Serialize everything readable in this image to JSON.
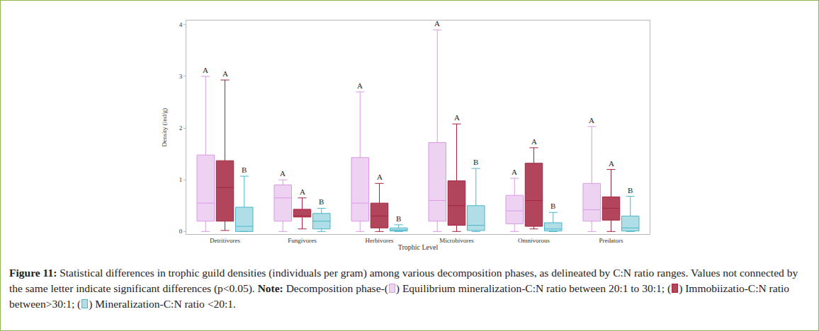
{
  "chart_data": {
    "type": "box",
    "x_label": "Trophic Level",
    "y_label": "Density (ind/g)",
    "categories": [
      "Detritivores",
      "Fungivores",
      "Herbivores",
      "Microbivores",
      "Omnivorous",
      "Predators"
    ],
    "ylim": [
      -0.05,
      4.08
    ],
    "yticks": [
      0,
      1,
      2,
      3,
      4
    ],
    "grid": false,
    "series": [
      {
        "name": "Equilibrium mineralization-C:N ratio between 20:1 to 30:1",
        "color": "#d99be3",
        "lowerfence": [
          0.0,
          0.0,
          0.0,
          0.0,
          0.0,
          0.0
        ],
        "q1": [
          0.2,
          0.2,
          0.2,
          0.2,
          0.15,
          0.2
        ],
        "median": [
          0.55,
          0.65,
          0.55,
          0.6,
          0.4,
          0.42
        ],
        "q3": [
          1.48,
          0.9,
          1.43,
          1.72,
          0.7,
          0.93
        ],
        "upperfence": [
          3.0,
          1.0,
          2.7,
          3.9,
          1.03,
          2.03
        ],
        "letters": [
          "A",
          "A",
          "A",
          "A",
          "A",
          "A"
        ]
      },
      {
        "name": "Immobiizatio-C:N ratio between>30:1",
        "color": "#a3253f",
        "lowerfence": [
          0.02,
          0.05,
          0.0,
          0.0,
          0.05,
          0.0
        ],
        "q1": [
          0.2,
          0.28,
          0.07,
          0.12,
          0.1,
          0.22
        ],
        "median": [
          0.85,
          0.3,
          0.3,
          0.5,
          0.6,
          0.45
        ],
        "q3": [
          1.37,
          0.43,
          0.55,
          0.98,
          1.32,
          0.67
        ],
        "upperfence": [
          2.93,
          0.65,
          0.93,
          2.08,
          1.62,
          1.2
        ],
        "letters": [
          "A",
          "A",
          "A",
          "A",
          "A",
          "A"
        ]
      },
      {
        "name": "Mineralization-C:N ratio <20:1",
        "color": "#4db6c9",
        "lowerfence": [
          0.0,
          0.0,
          0.0,
          0.0,
          0.0,
          0.0
        ],
        "q1": [
          0.0,
          0.05,
          0.01,
          0.02,
          0.01,
          0.01
        ],
        "median": [
          0.1,
          0.2,
          0.03,
          0.12,
          0.05,
          0.07
        ],
        "q3": [
          0.47,
          0.35,
          0.07,
          0.5,
          0.17,
          0.3
        ],
        "upperfence": [
          1.07,
          0.45,
          0.13,
          1.22,
          0.37,
          0.68
        ],
        "letters": [
          "B",
          "B",
          "B",
          "B",
          "B",
          "B"
        ]
      }
    ],
    "caption": {
      "label": "Figure 11:",
      "text": " Statistical differences in trophic guild densities (individuals per gram) among various decomposition phases, as delineated by C:N ratio ranges. Values not connected by the same letter indicate significant differences (p<0.05). ",
      "note_label": "Note:",
      "note_parts": [
        "  Decomposition phase-(",
        {
          "swatch": 0
        },
        ") ",
        {
          "name": 0
        },
        "; (",
        {
          "swatch": 1
        },
        ") ",
        {
          "name": 1
        },
        "; (",
        {
          "swatch": 2
        },
        ") ",
        {
          "name": 2
        },
        "."
      ]
    }
  }
}
